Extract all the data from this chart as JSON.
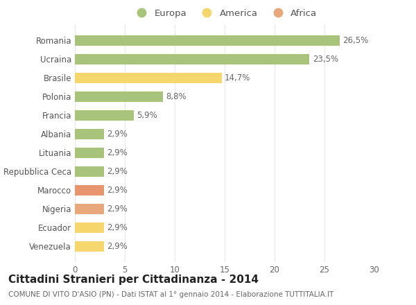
{
  "countries": [
    "Venezuela",
    "Ecuador",
    "Nigeria",
    "Marocco",
    "Repubblica Ceca",
    "Lituania",
    "Albania",
    "Francia",
    "Polonia",
    "Brasile",
    "Ucraina",
    "Romania"
  ],
  "values": [
    2.9,
    2.9,
    2.9,
    2.9,
    2.9,
    2.9,
    2.9,
    5.9,
    8.8,
    14.7,
    23.5,
    26.5
  ],
  "labels": [
    "2,9%",
    "2,9%",
    "2,9%",
    "2,9%",
    "2,9%",
    "2,9%",
    "2,9%",
    "5,9%",
    "8,8%",
    "14,7%",
    "23,5%",
    "26,5%"
  ],
  "colors": [
    "#f5d76e",
    "#f5d76e",
    "#e8a87c",
    "#e8956d",
    "#a8c47a",
    "#a8c47a",
    "#a8c47a",
    "#a8c47a",
    "#a8c47a",
    "#f5d76e",
    "#a8c47a",
    "#a8c47a"
  ],
  "legend_labels": [
    "Europa",
    "America",
    "Africa"
  ],
  "legend_colors": [
    "#a8c47a",
    "#f5d76e",
    "#e8a87c"
  ],
  "title": "Cittadini Stranieri per Cittadinanza - 2014",
  "subtitle": "COMUNE DI VITO D'ASIO (PN) - Dati ISTAT al 1° gennaio 2014 - Elaborazione TUTTITALIA.IT",
  "xlim": [
    0,
    30
  ],
  "xticks": [
    0,
    5,
    10,
    15,
    20,
    25,
    30
  ],
  "background_color": "#ffffff",
  "grid_color": "#e8e8e8",
  "bar_height": 0.55,
  "title_fontsize": 11,
  "subtitle_fontsize": 7.5,
  "label_fontsize": 8.5,
  "tick_fontsize": 8.5,
  "legend_fontsize": 9.5
}
